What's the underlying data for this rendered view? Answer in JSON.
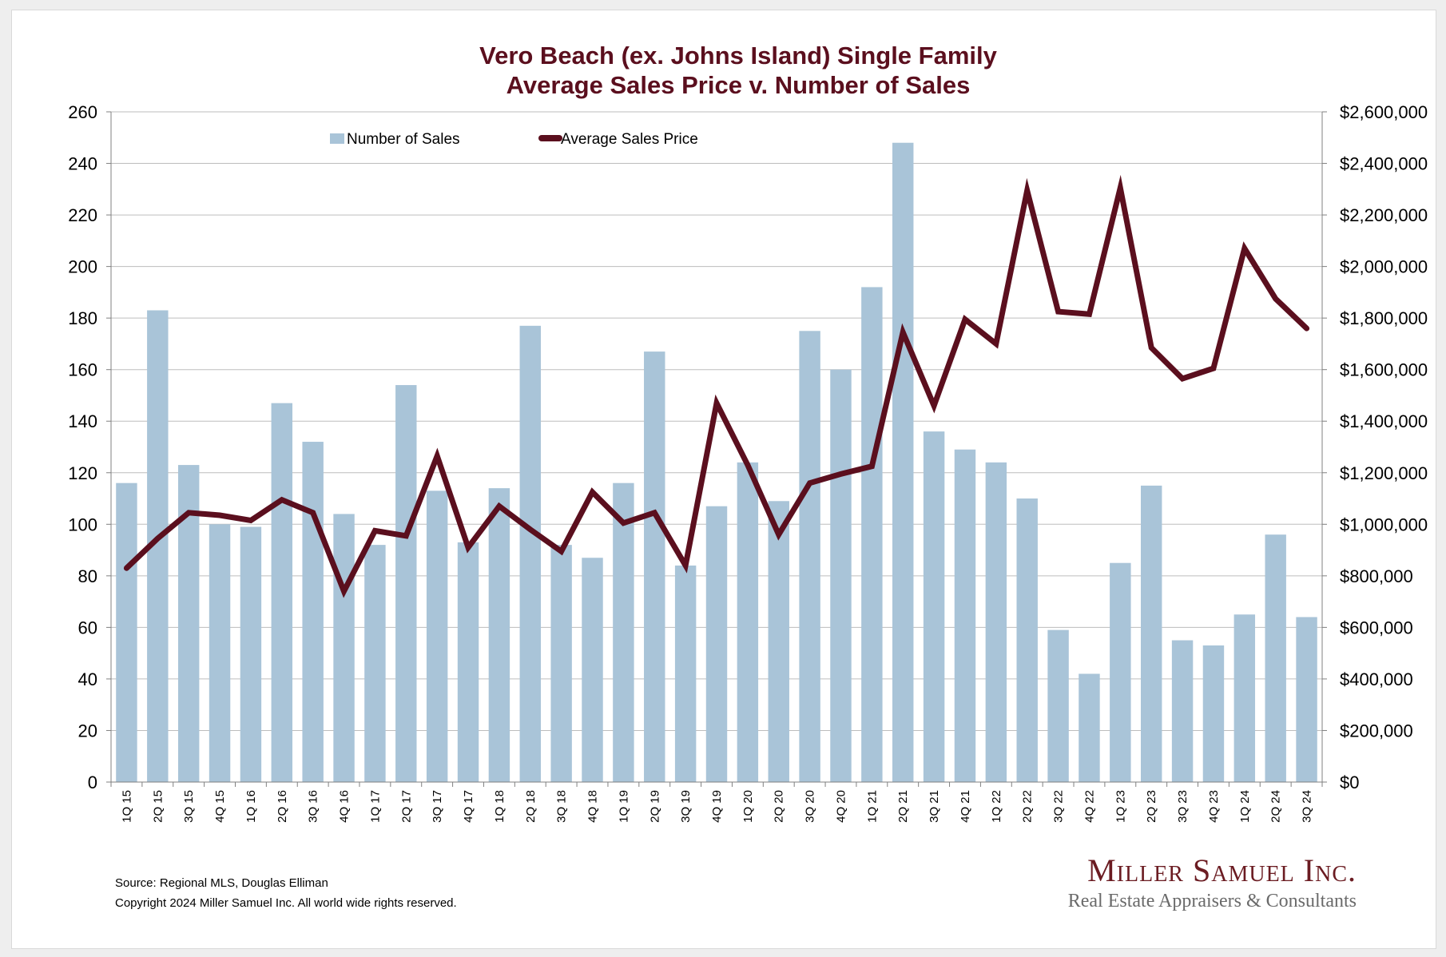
{
  "chart_data": {
    "type": "bar+line",
    "title_lines": [
      "Vero Beach (ex. Johns Island) Single Family",
      "Average Sales Price v. Number of Sales"
    ],
    "categories": [
      "1Q 15",
      "2Q 15",
      "3Q 15",
      "4Q 15",
      "1Q 16",
      "2Q 16",
      "3Q 16",
      "4Q 16",
      "1Q 17",
      "2Q 17",
      "3Q 17",
      "4Q 17",
      "1Q 18",
      "2Q 18",
      "3Q 18",
      "4Q 18",
      "1Q 19",
      "2Q 19",
      "3Q 19",
      "4Q 19",
      "1Q 20",
      "2Q 20",
      "3Q 20",
      "4Q 20",
      "1Q 21",
      "2Q 21",
      "3Q 21",
      "4Q 21",
      "1Q 22",
      "2Q 22",
      "3Q 22",
      "4Q 22",
      "1Q 23",
      "2Q 23",
      "3Q 23",
      "4Q 23",
      "1Q 24",
      "2Q 24",
      "3Q 24"
    ],
    "series": [
      {
        "name": "Number of Sales",
        "type": "bar",
        "axis": "left",
        "color": "#a9c4d8",
        "values": [
          116,
          183,
          123,
          100,
          99,
          147,
          132,
          104,
          92,
          154,
          113,
          93,
          114,
          177,
          92,
          87,
          116,
          167,
          84,
          107,
          124,
          109,
          175,
          160,
          192,
          248,
          136,
          129,
          124,
          110,
          59,
          42,
          85,
          115,
          55,
          53,
          65,
          96,
          64
        ]
      },
      {
        "name": "Average Sales Price",
        "type": "line",
        "axis": "right",
        "color": "#5b0f1e",
        "values": [
          830000,
          945000,
          1045000,
          1035000,
          1015000,
          1095000,
          1045000,
          740000,
          975000,
          955000,
          1265000,
          910000,
          1070000,
          980000,
          895000,
          1125000,
          1005000,
          1045000,
          840000,
          1470000,
          1230000,
          960000,
          1160000,
          1195000,
          1225000,
          1745000,
          1460000,
          1795000,
          1700000,
          2295000,
          1825000,
          1815000,
          2305000,
          1685000,
          1565000,
          1605000,
          2070000,
          1875000,
          1760000
        ]
      }
    ],
    "y_left": {
      "min": 0,
      "max": 260,
      "step": 20,
      "tick_labels": [
        "0",
        "20",
        "40",
        "60",
        "80",
        "100",
        "120",
        "140",
        "160",
        "180",
        "200",
        "220",
        "240",
        "260"
      ]
    },
    "y_right": {
      "min": 0,
      "max": 2600000,
      "step": 200000,
      "tick_labels": [
        "$0",
        "$200,000",
        "$400,000",
        "$600,000",
        "$800,000",
        "$1,000,000",
        "$1,200,000",
        "$1,400,000",
        "$1,600,000",
        "$1,800,000",
        "$2,000,000",
        "$2,200,000",
        "$2,400,000",
        "$2,600,000"
      ]
    },
    "grid": true,
    "legend": {
      "position": "top-left",
      "entries": [
        "Number of Sales",
        "Average Sales Price"
      ]
    }
  },
  "footer": {
    "source": "Source: Regional MLS, Douglas Elliman",
    "copyright": "Copyright 2024 Miller Samuel Inc.  All world wide rights reserved."
  },
  "logo": {
    "name": "Miller Samuel Inc.",
    "tagline": "Real Estate Appraisers & Consultants"
  }
}
